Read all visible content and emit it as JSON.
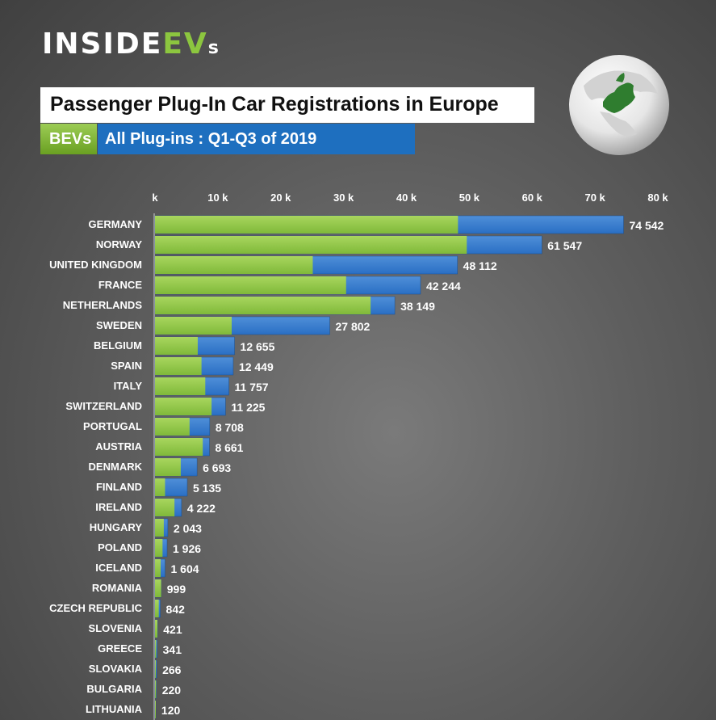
{
  "header": {
    "logo_main": "INSIDE",
    "logo_ev": "EV",
    "logo_s": "s",
    "title": "Passenger Plug-In Car Registrations in Europe"
  },
  "legend": {
    "bev_label": "BEVs",
    "all_label": "All Plug-ins : Q1-Q3 of 2019"
  },
  "colors": {
    "bev": "#7fb93a",
    "all": "#2a6fc4"
  },
  "chart_data": {
    "type": "bar",
    "orientation": "horizontal",
    "title": "Passenger Plug-In Car Registrations in Europe",
    "subtitle": "All Plug-ins : Q1-Q3 of 2019",
    "xlim": [
      0,
      80000
    ],
    "x_ticks": [
      0,
      10000,
      20000,
      30000,
      40000,
      50000,
      60000,
      70000,
      80000
    ],
    "x_tick_labels": [
      "k",
      "10 k",
      "20 k",
      "30 k",
      "40 k",
      "50 k",
      "60 k",
      "70 k",
      "80 k"
    ],
    "categories": [
      "GERMANY",
      "NORWAY",
      "UNITED KINGDOM",
      "FRANCE",
      "NETHERLANDS",
      "SWEDEN",
      "BELGIUM",
      "SPAIN",
      "ITALY",
      "SWITZERLAND",
      "PORTUGAL",
      "AUSTRIA",
      "DENMARK",
      "FINLAND",
      "IRELAND",
      "HUNGARY",
      "POLAND",
      "ICELAND",
      "ROMANIA",
      "CZECH REPUBLIC",
      "SLOVENIA",
      "GREECE",
      "SLOVAKIA",
      "BULGARIA",
      "LITHUANIA"
    ],
    "series": [
      {
        "name": "BEVs",
        "values": [
          48200,
          49600,
          25100,
          30400,
          34300,
          12200,
          6800,
          7400,
          8000,
          9000,
          5500,
          7600,
          4100,
          1600,
          3100,
          1400,
          1200,
          900,
          990,
          600,
          400,
          180,
          120,
          160,
          100
        ]
      },
      {
        "name": "All Plug-ins",
        "values": [
          74542,
          61547,
          48112,
          42244,
          38149,
          27802,
          12655,
          12449,
          11757,
          11225,
          8708,
          8661,
          6693,
          5135,
          4222,
          2043,
          1926,
          1604,
          999,
          842,
          421,
          341,
          266,
          220,
          120
        ]
      }
    ],
    "data_labels": [
      "74 542",
      "61 547",
      "48 112",
      "42 244",
      "38 149",
      "27 802",
      "12 655",
      "12 449",
      "11 757",
      "11 225",
      "8 708",
      "8 661",
      "6 693",
      "5 135",
      "4 222",
      "2 043",
      "1 926",
      "1 604",
      "999",
      "842",
      "421",
      "341",
      "266",
      "220",
      "120"
    ]
  }
}
